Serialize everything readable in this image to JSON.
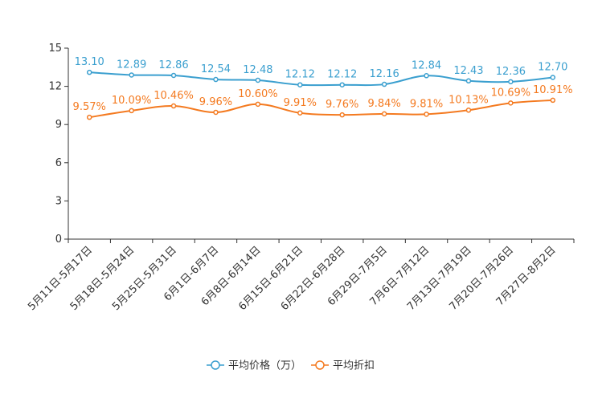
{
  "chart_data": {
    "type": "line",
    "title": "",
    "xlabel": "",
    "ylabel": "",
    "ylim": [
      0,
      15
    ],
    "yticks": [
      0,
      3,
      6,
      9,
      12,
      15
    ],
    "grid": false,
    "legend_position": "bottom-center",
    "categories": [
      "5月11日-5月17日",
      "5月18日-5月24日",
      "5月25日-5月31日",
      "6月1日-6月7日",
      "6月8日-6月14日",
      "6月15日-6月21日",
      "6月22日-6月28日",
      "6月29日-7月5日",
      "7月6日-7月12日",
      "7月13日-7月19日",
      "7月20日-7月26日",
      "7月27日-8月2日"
    ],
    "series": [
      {
        "name": "平均价格（万）",
        "color": "#3a9fcf",
        "values": [
          13.1,
          12.89,
          12.86,
          12.54,
          12.48,
          12.12,
          12.12,
          12.16,
          12.84,
          12.43,
          12.36,
          12.7
        ],
        "labels": [
          "13.10",
          "12.89",
          "12.86",
          "12.54",
          "12.48",
          "12.12",
          "12.12",
          "12.16",
          "12.84",
          "12.43",
          "12.36",
          "12.70"
        ]
      },
      {
        "name": "平均折扣",
        "color": "#f47a20",
        "values": [
          9.57,
          10.09,
          10.46,
          9.96,
          10.6,
          9.91,
          9.76,
          9.84,
          9.81,
          10.13,
          10.69,
          10.91
        ],
        "labels": [
          "9.57%",
          "10.09%",
          "10.46%",
          "9.96%",
          "10.60%",
          "9.91%",
          "9.76%",
          "9.84%",
          "9.81%",
          "10.13%",
          "10.69%",
          "10.91%"
        ]
      }
    ]
  }
}
